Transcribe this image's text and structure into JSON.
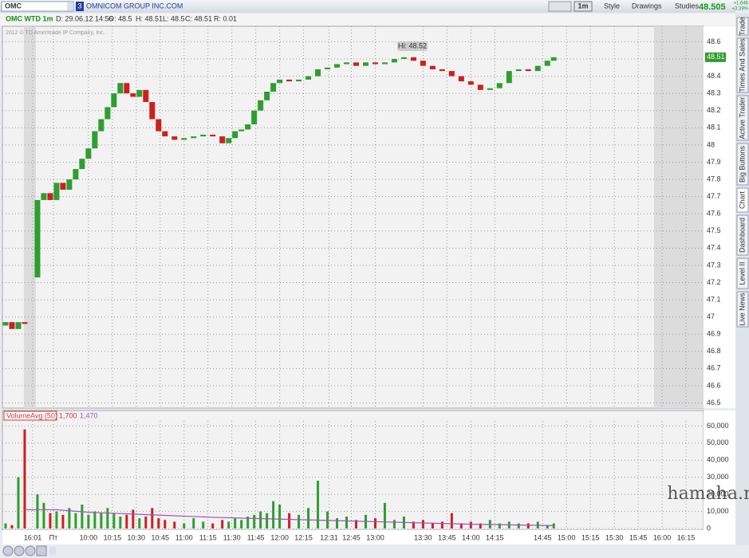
{
  "toolbar": {
    "symbol": "OMC",
    "badge": "3",
    "company": "OMNICOM GROUP INC.COM",
    "interval": "1m",
    "style": "Style",
    "drawings": "Drawings",
    "studies": "Studies",
    "last": "48.505",
    "change": "+1.646",
    "change_pct": "+3.39%"
  },
  "info_bar": {
    "name": "OMC WTD 1m",
    "date": "D: 29.06.12 14:56",
    "open": "O: 48.5",
    "high": "H: 48.51",
    "low": "L: 48.5",
    "close": "C: 48.51",
    "range": "R: 0.01"
  },
  "copyright": "2012 © TD Ameritrade IP Company, Inc.",
  "side_tabs": [
    "Trade",
    "Times And Sales",
    "Active Trader",
    "Big Buttons",
    "Chart",
    "Dashboard",
    "Level II",
    "Live News"
  ],
  "watermark": "hamaha.net",
  "chart_data": [
    {
      "type": "candlestick",
      "annotation": "Hi: 48.52",
      "up_color": "#2e9e2e",
      "down_color": "#cc2020",
      "x": [
        -52,
        -48,
        -44,
        -40,
        -32,
        -28,
        -24,
        -20,
        -16,
        -12,
        -8,
        -4,
        0,
        4,
        8,
        12,
        16,
        20,
        24,
        28,
        32,
        36,
        40,
        44,
        48,
        54,
        60,
        66,
        72,
        78,
        84,
        88,
        92,
        96,
        100,
        104,
        108,
        112,
        116,
        120,
        126,
        132,
        138,
        144,
        150,
        156,
        162,
        168,
        174,
        180,
        186,
        192,
        198,
        204,
        210,
        216,
        222,
        228,
        234,
        240,
        246,
        252,
        258,
        264,
        270,
        276,
        282,
        288,
        292
      ],
      "open": [
        46.95,
        46.97,
        46.93,
        46.97,
        47.23,
        47.68,
        47.72,
        47.68,
        47.78,
        47.74,
        47.8,
        47.86,
        47.92,
        47.98,
        48.08,
        48.15,
        48.22,
        48.3,
        48.36,
        48.3,
        48.28,
        48.32,
        48.25,
        48.15,
        48.08,
        48.05,
        48.03,
        48.04,
        48.05,
        48.06,
        48.05,
        48.01,
        48.04,
        48.08,
        48.09,
        48.12,
        48.2,
        48.26,
        48.31,
        48.36,
        48.38,
        48.37,
        48.38,
        48.4,
        48.44,
        48.45,
        48.47,
        48.48,
        48.46,
        48.48,
        48.47,
        48.48,
        48.5,
        48.51,
        48.49,
        48.46,
        48.44,
        48.43,
        48.4,
        48.37,
        48.35,
        48.32,
        48.33,
        48.36,
        48.43,
        48.44,
        48.43,
        48.46,
        48.49
      ],
      "close": [
        46.97,
        46.93,
        46.97,
        46.96,
        47.68,
        47.72,
        47.68,
        47.78,
        47.74,
        47.8,
        47.86,
        47.92,
        47.98,
        48.08,
        48.15,
        48.22,
        48.3,
        48.36,
        48.3,
        48.28,
        48.32,
        48.25,
        48.15,
        48.08,
        48.05,
        48.03,
        48.04,
        48.05,
        48.06,
        48.05,
        48.01,
        48.04,
        48.08,
        48.09,
        48.12,
        48.2,
        48.26,
        48.31,
        48.36,
        48.38,
        48.37,
        48.38,
        48.4,
        48.44,
        48.45,
        48.47,
        48.48,
        48.46,
        48.48,
        48.47,
        48.48,
        48.5,
        48.51,
        48.49,
        48.46,
        48.44,
        48.43,
        48.4,
        48.37,
        48.35,
        48.32,
        48.33,
        48.36,
        48.43,
        48.44,
        48.43,
        48.46,
        48.49,
        48.51
      ],
      "xlim": [
        -54,
        386
      ],
      "ylim": [
        46.47,
        48.69
      ],
      "yticks": [
        46.5,
        46.6,
        46.7,
        46.8,
        46.9,
        47,
        47.1,
        47.2,
        47.3,
        47.4,
        47.5,
        47.6,
        47.7,
        47.8,
        47.9,
        48,
        48.1,
        48.2,
        48.3,
        48.4,
        48.5,
        48.6
      ],
      "grid": true
    },
    {
      "type": "bar",
      "study": "VolumeAvg (50)",
      "study_value_1": "1,700",
      "study_value_2": "1,470",
      "up_color": "#2e9e2e",
      "down_color": "#cc2020",
      "avg_color": "#a050c0",
      "x": [
        -52,
        -48,
        -44,
        -40,
        -32,
        -28,
        -24,
        -20,
        -16,
        -12,
        -8,
        -4,
        0,
        4,
        8,
        12,
        16,
        20,
        24,
        28,
        32,
        36,
        40,
        44,
        48,
        54,
        60,
        66,
        72,
        78,
        84,
        88,
        92,
        96,
        100,
        104,
        108,
        112,
        116,
        120,
        126,
        132,
        138,
        144,
        150,
        156,
        162,
        168,
        174,
        180,
        186,
        192,
        198,
        204,
        210,
        216,
        222,
        228,
        234,
        240,
        246,
        252,
        258,
        264,
        270,
        276,
        282,
        288,
        292
      ],
      "values": [
        3000,
        2000,
        30000,
        58000,
        20000,
        15000,
        9000,
        10000,
        8000,
        12000,
        9000,
        14000,
        8000,
        10000,
        9000,
        12000,
        9000,
        7000,
        8000,
        11000,
        6000,
        7000,
        12000,
        6000,
        5000,
        4000,
        3000,
        6000,
        4000,
        3000,
        5000,
        4000,
        6000,
        5000,
        7000,
        8000,
        10000,
        9000,
        16000,
        14000,
        9000,
        8000,
        12000,
        28000,
        10000,
        6000,
        7000,
        5000,
        8000,
        6000,
        15000,
        5000,
        7000,
        4000,
        5000,
        3000,
        4000,
        9000,
        3000,
        4000,
        3000,
        5000,
        3000,
        4000,
        3000,
        3000,
        4000,
        2000,
        3000
      ],
      "avg_x": [
        -40,
        -20,
        0,
        40,
        80,
        120,
        160,
        200,
        240,
        292
      ],
      "avg_values": [
        11000,
        11000,
        9500,
        8000,
        6500,
        5500,
        4500,
        3500,
        2500,
        1700
      ],
      "xlim": [
        -54,
        386
      ],
      "ylim": [
        0,
        63000
      ],
      "yticks": [
        0,
        {
          "value": 10000,
          "label": "10,000"
        },
        {
          "value": 20000,
          "label": "20,000"
        },
        {
          "value": 30000,
          "label": "30,000"
        },
        {
          "value": 40000,
          "label": "40,000"
        },
        {
          "value": 50000,
          "label": "50,000"
        },
        {
          "value": 60000,
          "label": "60,000"
        }
      ],
      "xticks": [
        {
          "value": -35,
          "label": "16:01"
        },
        {
          "value": -22,
          "label": "Пт"
        },
        {
          "value": 0,
          "label": "10:00"
        },
        {
          "value": 15,
          "label": "10:15"
        },
        {
          "value": 30,
          "label": "10:30"
        },
        {
          "value": 45,
          "label": "10:45"
        },
        {
          "value": 60,
          "label": "11:00"
        },
        {
          "value": 75,
          "label": "11:15"
        },
        {
          "value": 90,
          "label": "11:30"
        },
        {
          "value": 105,
          "label": "11:45"
        },
        {
          "value": 120,
          "label": "12:00"
        },
        {
          "value": 135,
          "label": "12:15"
        },
        {
          "value": 151,
          "label": "12:31"
        },
        {
          "value": 165,
          "label": "12:45"
        },
        {
          "value": 180,
          "label": "13:00"
        },
        {
          "value": 210,
          "label": "13:30"
        },
        {
          "value": 225,
          "label": "13:45"
        },
        {
          "value": 240,
          "label": "14:00"
        },
        {
          "value": 255,
          "label": "14:15"
        },
        {
          "value": 285,
          "label": "14:45"
        },
        {
          "value": 300,
          "label": "15:00"
        },
        {
          "value": 315,
          "label": "15:15"
        },
        {
          "value": 330,
          "label": "15:30"
        },
        {
          "value": 345,
          "label": "15:45"
        },
        {
          "value": 360,
          "label": "16:00"
        },
        {
          "value": 375,
          "label": "16:15"
        }
      ],
      "grid": true
    }
  ]
}
